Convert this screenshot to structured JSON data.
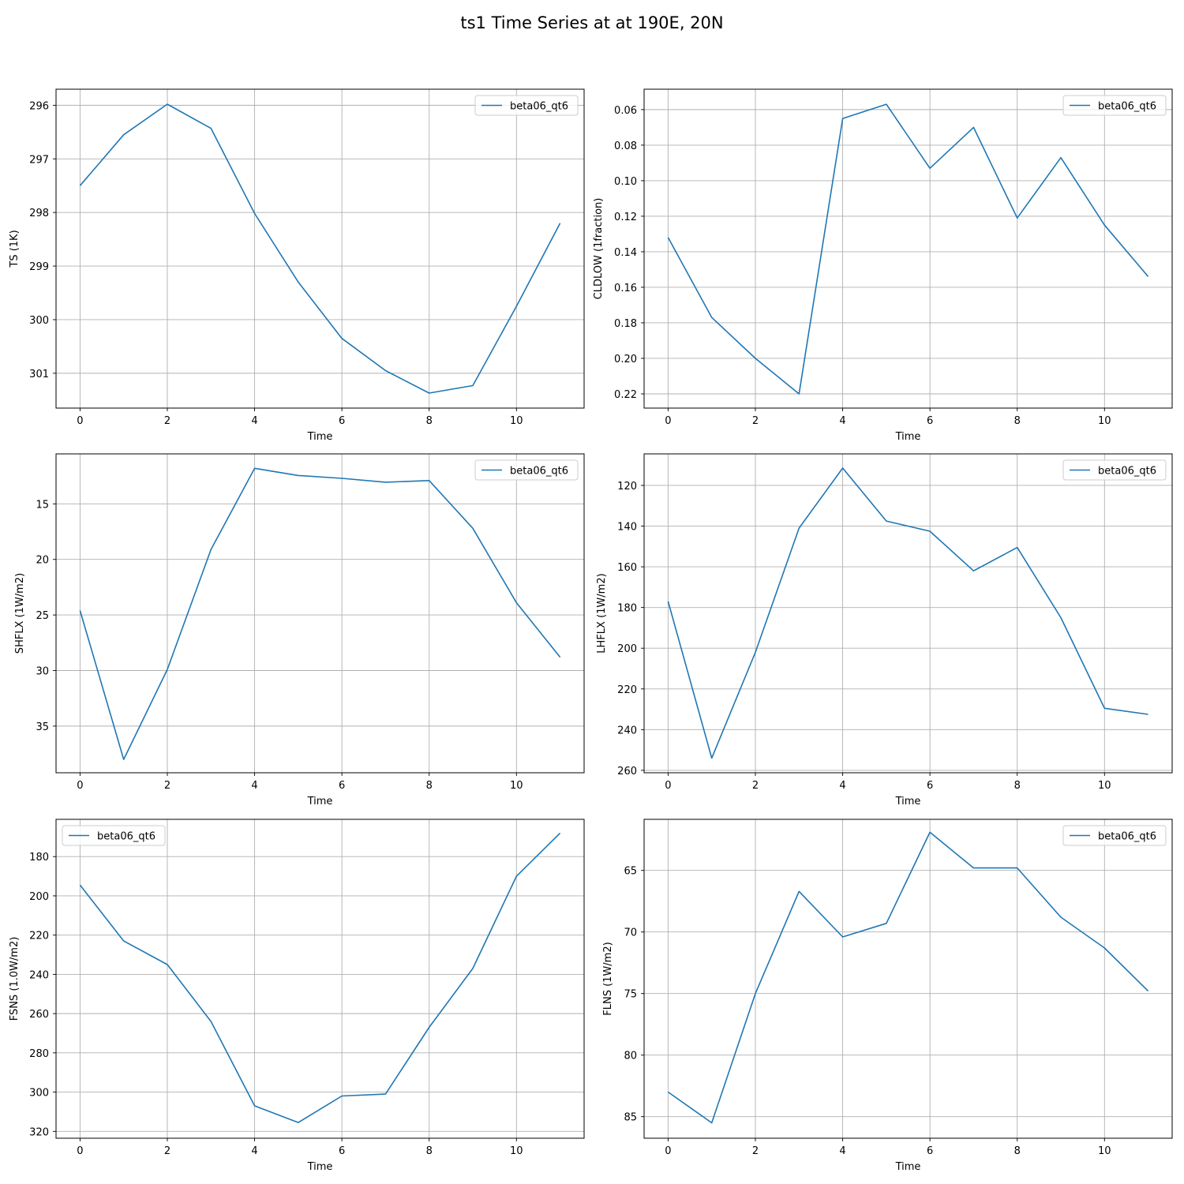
{
  "figure": {
    "title": "ts1 Time Series at at 190E, 20N"
  },
  "chart_data": [
    {
      "type": "line",
      "xlabel": "Time",
      "ylabel": "TS (1K)",
      "xlim": [
        -0.55,
        11.55
      ],
      "ylim": [
        301.65,
        295.7
      ],
      "inverted_y": true,
      "xticks": [
        0,
        2,
        4,
        6,
        8,
        10
      ],
      "yticks": [
        296,
        297,
        298,
        299,
        300,
        301
      ],
      "grid": true,
      "legend": "upper right",
      "series": [
        {
          "name": "beta06_qt6",
          "color": "#1f77b4",
          "x": [
            0,
            1,
            2,
            3,
            4,
            5,
            6,
            7,
            8,
            9,
            10,
            11
          ],
          "y": [
            297.5,
            296.55,
            295.98,
            296.43,
            298.02,
            299.3,
            300.35,
            300.95,
            301.37,
            301.23,
            299.75,
            298.2
          ]
        }
      ]
    },
    {
      "type": "line",
      "xlabel": "Time",
      "ylabel": "CLDLOW (1fraction)",
      "xlim": [
        -0.55,
        11.55
      ],
      "ylim": [
        0.228,
        0.0485
      ],
      "inverted_y": true,
      "xticks": [
        0,
        2,
        4,
        6,
        8,
        10
      ],
      "yticks": [
        0.06,
        0.08,
        0.1,
        0.12,
        0.14,
        0.16,
        0.18,
        0.2,
        0.22
      ],
      "ytick_labels": [
        "0.06",
        "0.08",
        "0.10",
        "0.12",
        "0.14",
        "0.16",
        "0.18",
        "0.20",
        "0.22"
      ],
      "grid": true,
      "legend": "upper right",
      "series": [
        {
          "name": "beta06_qt6",
          "color": "#1f77b4",
          "x": [
            0,
            1,
            2,
            3,
            4,
            5,
            6,
            7,
            8,
            9,
            10,
            11
          ],
          "y": [
            0.132,
            0.177,
            0.2,
            0.22,
            0.065,
            0.057,
            0.093,
            0.07,
            0.121,
            0.087,
            0.125,
            0.154
          ]
        }
      ]
    },
    {
      "type": "line",
      "xlabel": "Time",
      "ylabel": "SHFLX (1W/m2)",
      "xlim": [
        -0.55,
        11.55
      ],
      "ylim": [
        39.2,
        10.5
      ],
      "inverted_y": true,
      "xticks": [
        0,
        2,
        4,
        6,
        8,
        10
      ],
      "yticks": [
        15,
        20,
        25,
        30,
        35
      ],
      "grid": true,
      "legend": "upper right",
      "series": [
        {
          "name": "beta06_qt6",
          "color": "#1f77b4",
          "x": [
            0,
            1,
            2,
            3,
            4,
            5,
            6,
            7,
            8,
            9,
            10,
            11
          ],
          "y": [
            24.6,
            38.0,
            29.9,
            19.1,
            11.8,
            12.45,
            12.7,
            13.05,
            12.9,
            17.2,
            23.9,
            28.8
          ]
        }
      ]
    },
    {
      "type": "line",
      "xlabel": "Time",
      "ylabel": "LHFLX (1W/m2)",
      "xlim": [
        -0.55,
        11.55
      ],
      "ylim": [
        261.2,
        104.5
      ],
      "inverted_y": true,
      "xticks": [
        0,
        2,
        4,
        6,
        8,
        10
      ],
      "yticks": [
        120,
        140,
        160,
        180,
        200,
        220,
        240,
        260
      ],
      "grid": true,
      "legend": "upper right",
      "series": [
        {
          "name": "beta06_qt6",
          "color": "#1f77b4",
          "x": [
            0,
            1,
            2,
            3,
            4,
            5,
            6,
            7,
            8,
            9,
            10,
            11
          ],
          "y": [
            177,
            254,
            202,
            141,
            111.5,
            137.5,
            142.5,
            162,
            150.5,
            185,
            229.5,
            232.5
          ]
        }
      ]
    },
    {
      "type": "line",
      "xlabel": "Time",
      "ylabel": "FSNS (1.0W/m2)",
      "xlim": [
        -0.55,
        11.55
      ],
      "ylim": [
        323.5,
        161.0
      ],
      "inverted_y": true,
      "xticks": [
        0,
        2,
        4,
        6,
        8,
        10
      ],
      "yticks": [
        180,
        200,
        220,
        240,
        260,
        280,
        300,
        320
      ],
      "grid": true,
      "legend": "upper left",
      "series": [
        {
          "name": "beta06_qt6",
          "color": "#1f77b4",
          "x": [
            0,
            1,
            2,
            3,
            4,
            5,
            6,
            7,
            8,
            9,
            10,
            11
          ],
          "y": [
            194.5,
            223,
            235,
            264,
            307,
            315.5,
            302,
            301,
            267,
            237,
            190,
            168
          ]
        }
      ]
    },
    {
      "type": "line",
      "xlabel": "Time",
      "ylabel": "FLNS (1W/m2)",
      "xlim": [
        -0.55,
        11.55
      ],
      "ylim": [
        86.75,
        60.85
      ],
      "inverted_y": true,
      "xticks": [
        0,
        2,
        4,
        6,
        8,
        10
      ],
      "yticks": [
        65,
        70,
        75,
        80,
        85
      ],
      "grid": true,
      "legend": "upper right",
      "series": [
        {
          "name": "beta06_qt6",
          "color": "#1f77b4",
          "x": [
            0,
            1,
            2,
            3,
            4,
            5,
            6,
            7,
            8,
            9,
            10,
            11
          ],
          "y": [
            83,
            85.5,
            75,
            66.7,
            70.4,
            69.3,
            61.9,
            64.8,
            64.8,
            68.8,
            71.3,
            74.8
          ]
        }
      ]
    }
  ]
}
